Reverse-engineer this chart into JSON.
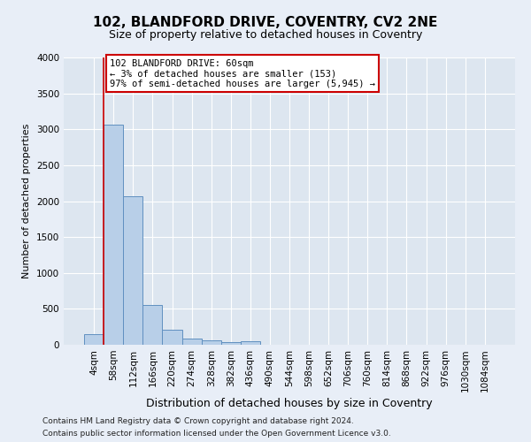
{
  "title_line1": "102, BLANDFORD DRIVE, COVENTRY, CV2 2NE",
  "title_line2": "Size of property relative to detached houses in Coventry",
  "xlabel": "Distribution of detached houses by size in Coventry",
  "ylabel": "Number of detached properties",
  "footnote1": "Contains HM Land Registry data © Crown copyright and database right 2024.",
  "footnote2": "Contains public sector information licensed under the Open Government Licence v3.0.",
  "bar_labels": [
    "4sqm",
    "58sqm",
    "112sqm",
    "166sqm",
    "220sqm",
    "274sqm",
    "328sqm",
    "382sqm",
    "436sqm",
    "490sqm",
    "544sqm",
    "598sqm",
    "652sqm",
    "706sqm",
    "760sqm",
    "814sqm",
    "868sqm",
    "922sqm",
    "976sqm",
    "1030sqm",
    "1084sqm"
  ],
  "bar_heights": [
    145,
    3065,
    2065,
    560,
    205,
    85,
    58,
    42,
    48,
    0,
    0,
    0,
    0,
    0,
    0,
    0,
    0,
    0,
    0,
    0,
    0
  ],
  "bar_color": "#b8cfe8",
  "bar_edge_color": "#6090c0",
  "ylim_max": 4000,
  "yticks": [
    0,
    500,
    1000,
    1500,
    2000,
    2500,
    3000,
    3500,
    4000
  ],
  "property_line_color": "#cc0000",
  "annotation_line1": "102 BLANDFORD DRIVE: 60sqm",
  "annotation_line2": "← 3% of detached houses are smaller (153)",
  "annotation_line3": "97% of semi-detached houses are larger (5,945) →",
  "annotation_box_edgecolor": "#cc0000",
  "fig_bg": "#e8eef7",
  "ax_bg": "#dde6f0",
  "grid_color": "#ffffff",
  "title1_fontsize": 11,
  "title2_fontsize": 9,
  "ylabel_fontsize": 8,
  "xlabel_fontsize": 9,
  "footnote_fontsize": 6.5,
  "tick_fontsize": 7.5
}
